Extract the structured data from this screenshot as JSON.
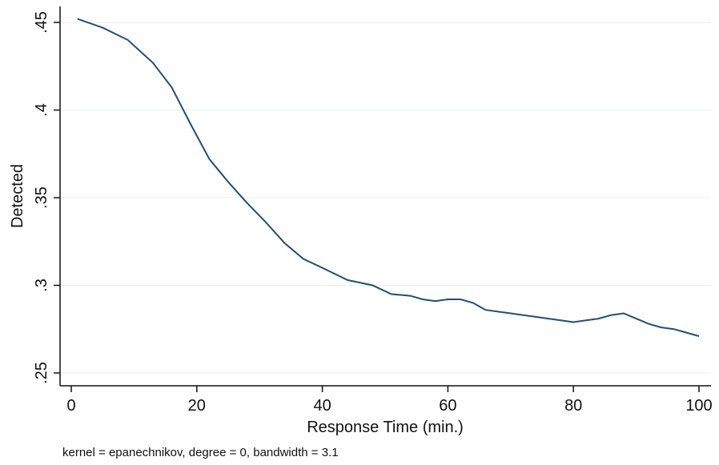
{
  "chart_data": {
    "type": "line",
    "title": "",
    "xlabel": "Response Time (min.)",
    "ylabel": "Detected",
    "note": "kernel = epanechnikov, degree = 0, bandwidth = 3.1",
    "xlim": [
      0,
      100
    ],
    "ylim": [
      0.25,
      0.45
    ],
    "x_ticks": [
      0,
      20,
      40,
      60,
      80,
      100
    ],
    "x_tick_labels": [
      "0",
      "20",
      "40",
      "60",
      "80",
      "100"
    ],
    "y_ticks": [
      0.25,
      0.3,
      0.35,
      0.4,
      0.45
    ],
    "y_tick_labels": [
      ".25",
      ".3",
      ".35",
      ".4",
      ".45"
    ],
    "grid": true,
    "colors": {
      "line": "#1f4e79",
      "grid": "#e8eef2",
      "background": "#ffffff",
      "axis": "#111111"
    },
    "series": [
      {
        "x": [
          1,
          5,
          9,
          13,
          16,
          19,
          22,
          25,
          28,
          31,
          34,
          37,
          40,
          44,
          48,
          51,
          54,
          56,
          58,
          60,
          62,
          64,
          66,
          68,
          70,
          72,
          74,
          76,
          78,
          80,
          82,
          84,
          86,
          88,
          90,
          92,
          94,
          96,
          98,
          100
        ],
        "values": [
          0.452,
          0.447,
          0.44,
          0.427,
          0.413,
          0.392,
          0.372,
          0.359,
          0.347,
          0.336,
          0.324,
          0.315,
          0.31,
          0.303,
          0.3,
          0.295,
          0.294,
          0.292,
          0.291,
          0.292,
          0.292,
          0.29,
          0.286,
          0.285,
          0.284,
          0.283,
          0.282,
          0.281,
          0.28,
          0.279,
          0.28,
          0.281,
          0.283,
          0.284,
          0.281,
          0.278,
          0.276,
          0.275,
          0.273,
          0.271
        ]
      }
    ]
  }
}
